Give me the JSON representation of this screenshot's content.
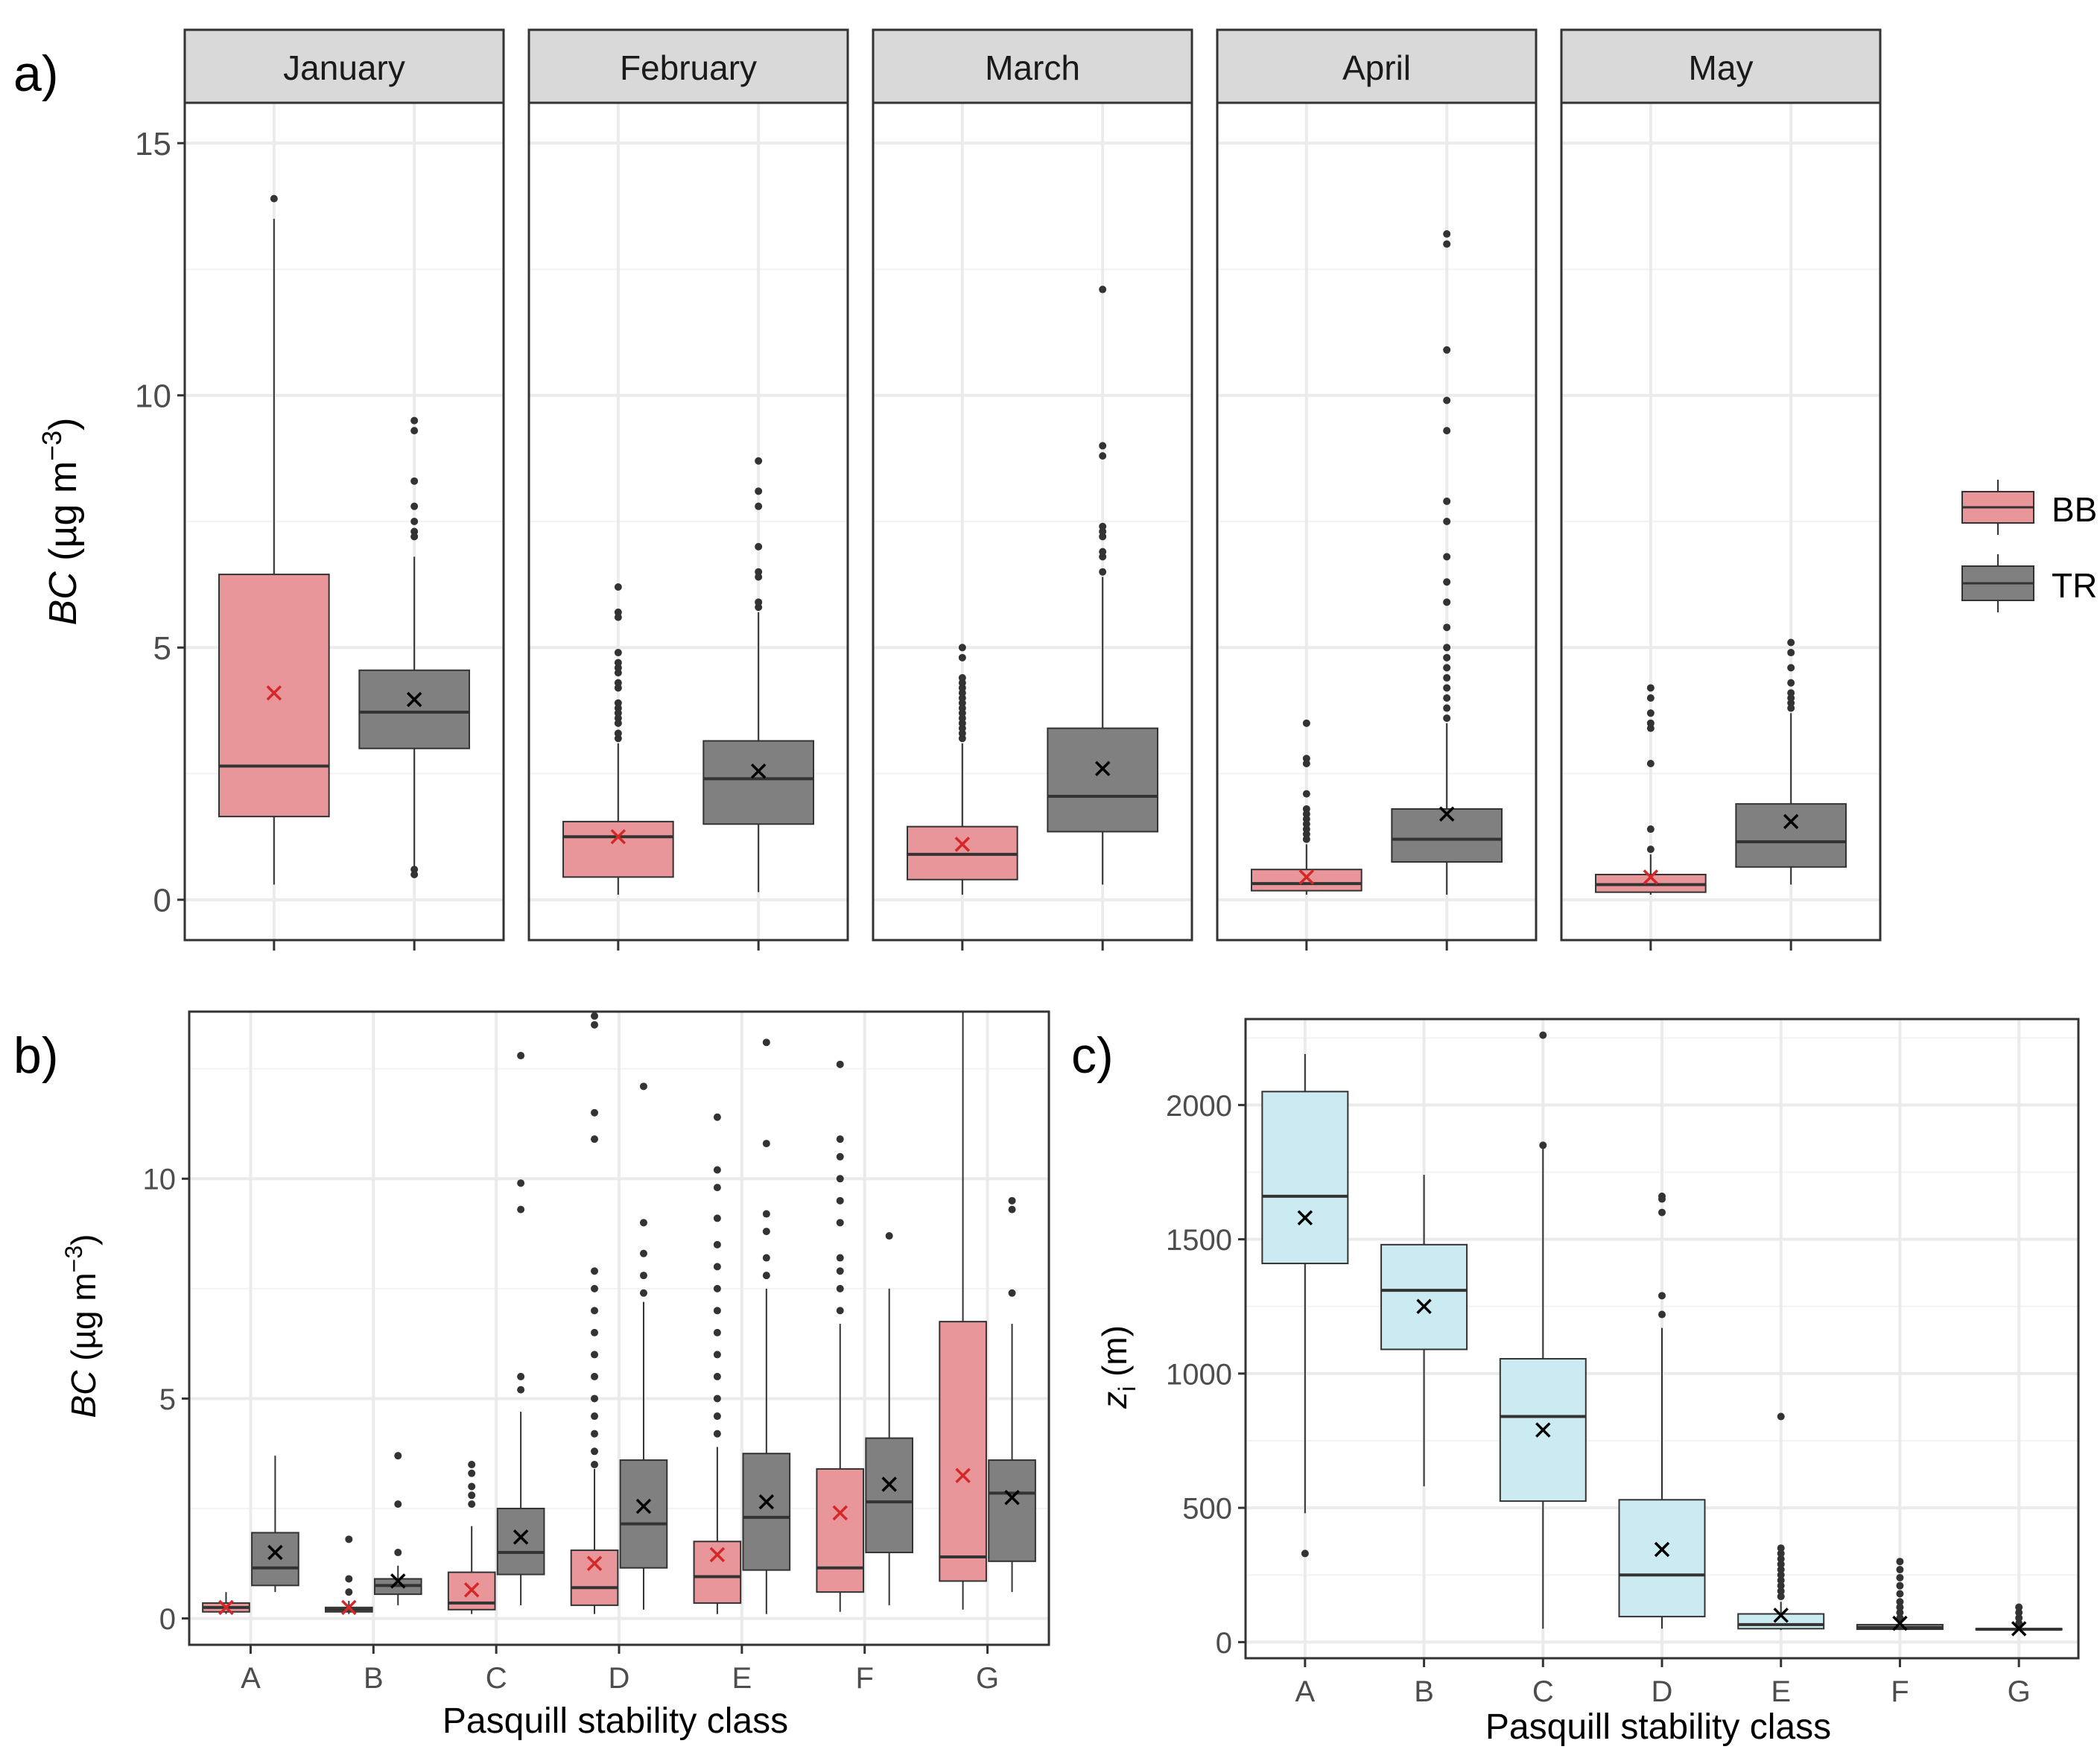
{
  "colors": {
    "BB": "#e8969a",
    "TR": "#808080",
    "zi": "#cbeaf1",
    "bb_mean": "#d62728",
    "tr_mean": "#000000",
    "grid": "#ebebeb",
    "strip": "#d9d9d9"
  },
  "chart_data": [
    {
      "id": "a",
      "panel_label": "a)",
      "type": "box",
      "ylabel_italic": "BC",
      "ylabel_rest": " (µg m",
      "ylabel_sup": "−3",
      "ylabel_close": ")",
      "ylim": [
        -0.8,
        15.8
      ],
      "yticks": [
        0,
        5,
        10,
        15
      ],
      "legend": {
        "placement": "right",
        "items": [
          {
            "key": "BB",
            "label": "BB"
          },
          {
            "key": "TR",
            "label": "TR"
          }
        ]
      },
      "facets": [
        {
          "label": "January",
          "series": [
            {
              "key": "BB",
              "whisker_low": 0.3,
              "q1": 1.65,
              "median": 2.65,
              "q3": 6.45,
              "whisker_high": 13.5,
              "mean": 4.1,
              "outliers": [
                13.9
              ]
            },
            {
              "key": "TR",
              "whisker_low": 0.6,
              "q1": 3.0,
              "median": 3.72,
              "q3": 4.55,
              "whisker_high": 6.8,
              "mean": 3.97,
              "outliers": [
                0.5,
                0.6,
                7.2,
                7.3,
                7.5,
                7.8,
                8.3,
                9.3,
                9.5
              ]
            }
          ]
        },
        {
          "label": "February",
          "series": [
            {
              "key": "BB",
              "whisker_low": 0.1,
              "q1": 0.45,
              "median": 1.25,
              "q3": 1.55,
              "whisker_high": 3.1,
              "mean": 1.25,
              "outliers": [
                3.2,
                3.3,
                3.5,
                3.6,
                3.7,
                3.8,
                3.9,
                4.2,
                4.3,
                4.5,
                4.6,
                4.7,
                4.9,
                5.6,
                5.7,
                6.2
              ]
            },
            {
              "key": "TR",
              "whisker_low": 0.15,
              "q1": 1.5,
              "median": 2.4,
              "q3": 3.15,
              "whisker_high": 5.7,
              "mean": 2.55,
              "outliers": [
                5.8,
                5.9,
                6.4,
                6.5,
                7.0,
                7.8,
                8.1,
                8.7
              ]
            }
          ]
        },
        {
          "label": "March",
          "series": [
            {
              "key": "BB",
              "whisker_low": 0.1,
              "q1": 0.4,
              "median": 0.9,
              "q3": 1.45,
              "whisker_high": 3.1,
              "mean": 1.1,
              "outliers": [
                3.2,
                3.3,
                3.4,
                3.5,
                3.6,
                3.7,
                3.8,
                3.9,
                4.0,
                4.1,
                4.2,
                4.3,
                4.4,
                4.8,
                5.0
              ]
            },
            {
              "key": "TR",
              "whisker_low": 0.3,
              "q1": 1.35,
              "median": 2.05,
              "q3": 3.4,
              "whisker_high": 6.4,
              "mean": 2.6,
              "outliers": [
                6.5,
                6.8,
                6.9,
                7.2,
                7.3,
                7.4,
                8.8,
                9.0,
                12.1
              ]
            }
          ]
        },
        {
          "label": "April",
          "series": [
            {
              "key": "BB",
              "whisker_low": 0.1,
              "q1": 0.18,
              "median": 0.32,
              "q3": 0.6,
              "whisker_high": 1.1,
              "mean": 0.45,
              "outliers": [
                1.2,
                1.3,
                1.4,
                1.5,
                1.6,
                1.7,
                1.8,
                2.1,
                2.7,
                2.8,
                3.5
              ]
            },
            {
              "key": "TR",
              "whisker_low": 0.1,
              "q1": 0.75,
              "median": 1.2,
              "q3": 1.8,
              "whisker_high": 3.5,
              "mean": 1.7,
              "outliers": [
                3.6,
                3.8,
                4.0,
                4.2,
                4.4,
                4.6,
                4.8,
                5.0,
                5.4,
                5.9,
                6.3,
                6.8,
                7.5,
                7.9,
                9.3,
                9.9,
                10.9,
                13.0,
                13.2
              ]
            }
          ]
        },
        {
          "label": "May",
          "series": [
            {
              "key": "BB",
              "whisker_low": 0.1,
              "q1": 0.15,
              "median": 0.3,
              "q3": 0.5,
              "whisker_high": 0.9,
              "mean": 0.45,
              "outliers": [
                1.0,
                1.4,
                2.7,
                3.4,
                3.5,
                3.7,
                4.0,
                4.2
              ]
            },
            {
              "key": "TR",
              "whisker_low": 0.3,
              "q1": 0.65,
              "median": 1.15,
              "q3": 1.9,
              "whisker_high": 3.7,
              "mean": 1.55,
              "outliers": [
                3.8,
                3.9,
                4.0,
                4.1,
                4.3,
                4.6,
                4.9,
                5.1
              ]
            }
          ]
        }
      ]
    },
    {
      "id": "b",
      "panel_label": "b)",
      "type": "box",
      "xlabel": "Pasquill stability class",
      "ylabel_italic": "BC",
      "ylabel_rest": " (µg m",
      "ylabel_sup": "−3",
      "ylabel_close": ")",
      "ylim": [
        -0.6,
        13.8
      ],
      "yticks": [
        0,
        5,
        10
      ],
      "categories": [
        {
          "label": "A",
          "series": [
            {
              "key": "BB",
              "whisker_low": 0.1,
              "q1": 0.15,
              "median": 0.25,
              "q3": 0.35,
              "whisker_high": 0.6,
              "mean": 0.25,
              "outliers": []
            },
            {
              "key": "TR",
              "whisker_low": 0.6,
              "q1": 0.75,
              "median": 1.15,
              "q3": 1.95,
              "whisker_high": 3.7,
              "mean": 1.5,
              "outliers": []
            }
          ]
        },
        {
          "label": "B",
          "series": [
            {
              "key": "BB",
              "whisker_low": 0.1,
              "q1": 0.15,
              "median": 0.2,
              "q3": 0.25,
              "whisker_high": 0.4,
              "mean": 0.25,
              "outliers": [
                0.6,
                0.9,
                1.8
              ]
            },
            {
              "key": "TR",
              "whisker_low": 0.3,
              "q1": 0.55,
              "median": 0.75,
              "q3": 0.9,
              "whisker_high": 1.2,
              "mean": 0.85,
              "outliers": [
                1.5,
                2.6,
                3.7
              ]
            }
          ]
        },
        {
          "label": "C",
          "series": [
            {
              "key": "BB",
              "whisker_low": 0.1,
              "q1": 0.2,
              "median": 0.35,
              "q3": 1.05,
              "whisker_high": 2.1,
              "mean": 0.65,
              "outliers": [
                2.6,
                2.8,
                3.0,
                3.3,
                3.5
              ]
            },
            {
              "key": "TR",
              "whisker_low": 0.3,
              "q1": 1.0,
              "median": 1.5,
              "q3": 2.5,
              "whisker_high": 4.7,
              "mean": 1.85,
              "outliers": [
                5.2,
                5.5,
                9.3,
                9.9,
                12.8
              ]
            }
          ]
        },
        {
          "label": "D",
          "series": [
            {
              "key": "BB",
              "whisker_low": 0.1,
              "q1": 0.3,
              "median": 0.7,
              "q3": 1.55,
              "whisker_high": 3.4,
              "mean": 1.25,
              "outliers": [
                3.5,
                3.8,
                4.2,
                4.6,
                5.0,
                5.5,
                6.0,
                6.5,
                7.0,
                7.5,
                7.9,
                10.9,
                11.5,
                13.5,
                13.7
              ]
            },
            {
              "key": "TR",
              "whisker_low": 0.2,
              "q1": 1.15,
              "median": 2.15,
              "q3": 3.6,
              "whisker_high": 7.2,
              "mean": 2.55,
              "outliers": [
                7.4,
                7.8,
                8.3,
                9.0,
                12.1
              ]
            }
          ]
        },
        {
          "label": "E",
          "series": [
            {
              "key": "BB",
              "whisker_low": 0.1,
              "q1": 0.35,
              "median": 0.95,
              "q3": 1.75,
              "whisker_high": 3.9,
              "mean": 1.45,
              "outliers": [
                4.2,
                4.6,
                5.0,
                5.5,
                6.0,
                6.5,
                7.0,
                7.5,
                8.0,
                8.5,
                9.1,
                9.8,
                10.2,
                11.4
              ]
            },
            {
              "key": "TR",
              "whisker_low": 0.1,
              "q1": 1.1,
              "median": 2.3,
              "q3": 3.75,
              "whisker_high": 7.5,
              "mean": 2.65,
              "outliers": [
                7.8,
                8.2,
                8.8,
                9.2,
                10.8,
                13.1
              ]
            }
          ]
        },
        {
          "label": "F",
          "series": [
            {
              "key": "BB",
              "whisker_low": 0.15,
              "q1": 0.6,
              "median": 1.15,
              "q3": 3.4,
              "whisker_high": 6.7,
              "mean": 2.4,
              "outliers": [
                7.0,
                7.5,
                7.9,
                8.2,
                9.0,
                9.5,
                10.0,
                10.5,
                10.9,
                12.6
              ]
            },
            {
              "key": "TR",
              "whisker_low": 0.3,
              "q1": 1.5,
              "median": 2.65,
              "q3": 4.1,
              "whisker_high": 7.5,
              "mean": 3.05,
              "outliers": [
                8.7
              ]
            }
          ]
        },
        {
          "label": "G",
          "series": [
            {
              "key": "BB",
              "whisker_low": 0.2,
              "q1": 0.85,
              "median": 1.4,
              "q3": 6.75,
              "whisker_high": 14.2,
              "mean": 3.25,
              "outliers": []
            },
            {
              "key": "TR",
              "whisker_low": 0.6,
              "q1": 1.3,
              "median": 2.85,
              "q3": 3.6,
              "whisker_high": 6.7,
              "mean": 2.75,
              "outliers": [
                7.4,
                9.3,
                9.5
              ]
            }
          ]
        }
      ]
    },
    {
      "id": "c",
      "panel_label": "c)",
      "type": "box",
      "xlabel": "Pasquill stability class",
      "ylabel_main": "z",
      "ylabel_sub": "i",
      "ylabel_rest": " (m)",
      "ylim": [
        -60,
        2320
      ],
      "yticks": [
        0,
        500,
        1000,
        1500,
        2000
      ],
      "categories": [
        {
          "label": "A",
          "series": [
            {
              "key": "zi",
              "whisker_low": 480,
              "q1": 1410,
              "median": 1660,
              "q3": 2050,
              "whisker_high": 2190,
              "mean": 1580,
              "outliers": [
                330
              ]
            }
          ]
        },
        {
          "label": "B",
          "series": [
            {
              "key": "zi",
              "whisker_low": 580,
              "q1": 1090,
              "median": 1310,
              "q3": 1480,
              "whisker_high": 1740,
              "mean": 1250,
              "outliers": []
            }
          ]
        },
        {
          "label": "C",
          "series": [
            {
              "key": "zi",
              "whisker_low": 50,
              "q1": 525,
              "median": 840,
              "q3": 1055,
              "whisker_high": 1840,
              "mean": 790,
              "outliers": [
                1850,
                2260
              ]
            }
          ]
        },
        {
          "label": "D",
          "series": [
            {
              "key": "zi",
              "whisker_low": 50,
              "q1": 95,
              "median": 250,
              "q3": 530,
              "whisker_high": 1170,
              "mean": 345,
              "outliers": [
                1220,
                1290,
                1600,
                1650,
                1660
              ]
            }
          ]
        },
        {
          "label": "E",
          "series": [
            {
              "key": "zi",
              "whisker_low": 45,
              "q1": 50,
              "median": 65,
              "q3": 105,
              "whisker_high": 150,
              "mean": 100,
              "outliers": [
                170,
                190,
                210,
                230,
                250,
                270,
                290,
                310,
                330,
                350,
                840
              ]
            }
          ]
        },
        {
          "label": "F",
          "series": [
            {
              "key": "zi",
              "whisker_low": 45,
              "q1": 48,
              "median": 55,
              "q3": 65,
              "whisker_high": 80,
              "mean": 70,
              "outliers": [
                90,
                110,
                130,
                150,
                180,
                210,
                240,
                270,
                300
              ]
            }
          ]
        },
        {
          "label": "G",
          "series": [
            {
              "key": "zi",
              "whisker_low": 45,
              "q1": 46,
              "median": 48,
              "q3": 50,
              "whisker_high": 55,
              "mean": 50,
              "outliers": [
                70,
                90,
                110,
                130
              ]
            }
          ]
        }
      ]
    }
  ]
}
